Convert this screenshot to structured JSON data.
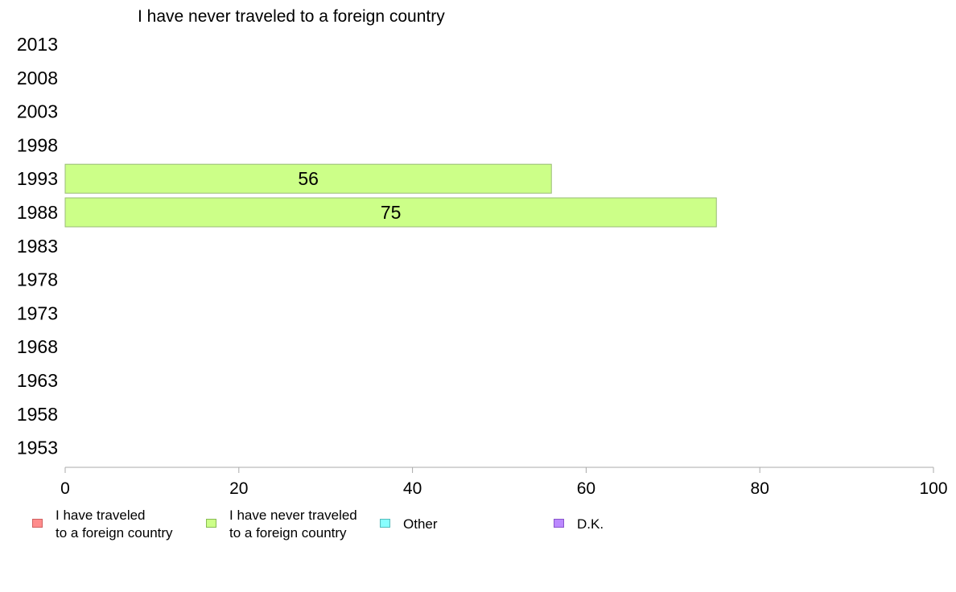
{
  "chart_data": {
    "type": "bar",
    "title": "I have never traveled to a foreign country",
    "categories": [
      "2013",
      "2008",
      "2003",
      "1998",
      "1993",
      "1988",
      "1983",
      "1978",
      "1973",
      "1968",
      "1963",
      "1958",
      "1953"
    ],
    "series": [
      {
        "name": "I have never traveled to a foreign country",
        "color": "#ccff88",
        "values": [
          null,
          null,
          null,
          null,
          56,
          75,
          null,
          null,
          null,
          null,
          null,
          null,
          null
        ]
      }
    ],
    "xlim": [
      0,
      100
    ],
    "xticks": [
      "0",
      "20",
      "40",
      "60",
      "80",
      "100"
    ],
    "orientation": "horizontal",
    "grid": false,
    "legend_position": "bottom"
  },
  "legend": [
    {
      "label": "I have traveled\nto a foreign country",
      "color": "#ff8c8c"
    },
    {
      "label": "I have never traveled\nto a foreign country",
      "color": "#ccff88"
    },
    {
      "label": "Other",
      "color": "#88ffff"
    },
    {
      "label": "D.K.",
      "color": "#bb88ff"
    }
  ]
}
